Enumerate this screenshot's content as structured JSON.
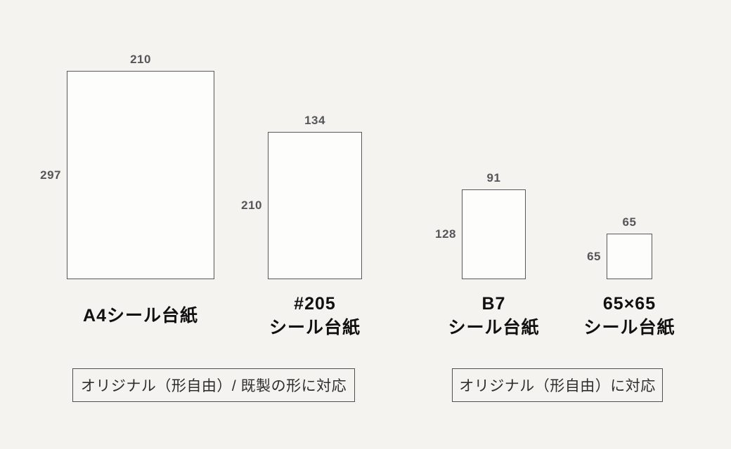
{
  "page": {
    "background_color": "#f4f3f0",
    "rect_fill_color": "#fdfdfc",
    "rect_border_color": "#58585a",
    "dimension_text_color": "#55565a",
    "name_text_color": "#101010"
  },
  "boards": [
    {
      "id": "a4",
      "name_line1": "A4シール台紙",
      "name_line2": "",
      "width_label": "210",
      "height_label": "297",
      "width_mm": 210,
      "height_mm": 297
    },
    {
      "id": "205",
      "name_line1": "#205",
      "name_line2": "シール台紙",
      "width_label": "134",
      "height_label": "210",
      "width_mm": 134,
      "height_mm": 210
    },
    {
      "id": "b7",
      "name_line1": "B7",
      "name_line2": "シール台紙",
      "width_label": "91",
      "height_label": "128",
      "width_mm": 91,
      "height_mm": 128
    },
    {
      "id": "65x65",
      "name_line1": "65×65",
      "name_line2": "シール台紙",
      "width_label": "65",
      "height_label": "65",
      "width_mm": 65,
      "height_mm": 65
    }
  ],
  "notes": [
    {
      "text": "オリジナル（形自由）/ 既製の形に対応"
    },
    {
      "text": "オリジナル（形自由）に対応"
    }
  ]
}
